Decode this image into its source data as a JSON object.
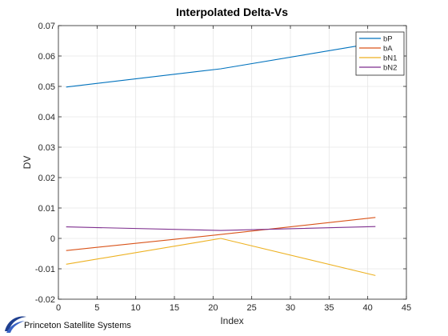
{
  "chart_data": {
    "type": "line",
    "title": "Interpolated Delta-Vs",
    "xlabel": "Index",
    "ylabel": "DV",
    "xlim": [
      0,
      45
    ],
    "ylim": [
      -0.02,
      0.07
    ],
    "xticks": [
      0,
      5,
      10,
      15,
      20,
      25,
      30,
      35,
      40,
      45
    ],
    "yticks": [
      -0.02,
      -0.01,
      0,
      0.01,
      0.02,
      0.03,
      0.04,
      0.05,
      0.06,
      0.07
    ],
    "ytick_labels": [
      "-0.02",
      "-0.01",
      "0",
      "0.01",
      "0.02",
      "0.03",
      "0.04",
      "0.05",
      "0.06",
      "0.07"
    ],
    "grid": true,
    "legend_position": "top-right",
    "series": [
      {
        "name": "bP",
        "color": "#0072BD",
        "x": [
          1,
          21,
          41
        ],
        "y": [
          0.0498,
          0.0558,
          0.0643
        ]
      },
      {
        "name": "bA",
        "color": "#D95319",
        "x": [
          1,
          21,
          41
        ],
        "y": [
          -0.004,
          0.0013,
          0.0069
        ]
      },
      {
        "name": "bN1",
        "color": "#EDB120",
        "x": [
          1,
          21,
          41
        ],
        "y": [
          -0.0085,
          0.0,
          -0.0122
        ]
      },
      {
        "name": "bN2",
        "color": "#7E2F8E",
        "x": [
          1,
          21,
          41
        ],
        "y": [
          0.0038,
          0.0026,
          0.0039
        ]
      }
    ]
  },
  "branding": {
    "text": "Princeton Satellite Systems",
    "logo_icon": "swoosh-logo-icon"
  }
}
